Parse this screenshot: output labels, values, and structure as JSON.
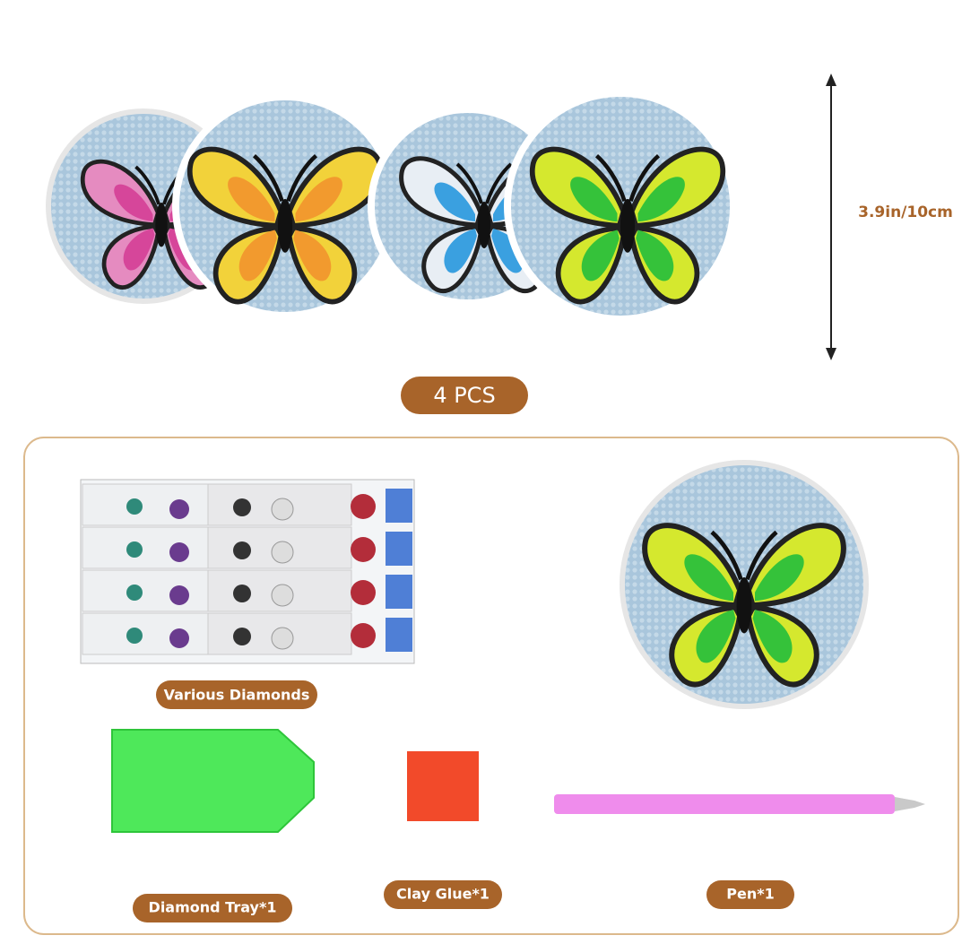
{
  "dimension_label": "3.9in/10cm",
  "quantity_label": "4 PCS",
  "items": [
    {
      "label": "Various Diamonds"
    },
    {
      "label": "Diamond Tray*1"
    },
    {
      "label": "Clay Glue*1"
    },
    {
      "label": "Pen*1"
    }
  ]
}
